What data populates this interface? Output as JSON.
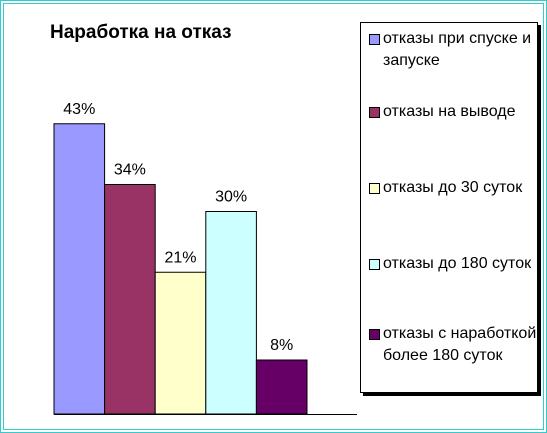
{
  "chart_data": {
    "type": "bar",
    "title": "Наработка на отказ",
    "categories": [
      "отказы при спуске и запуске",
      "отказы на выводе",
      "отказы до 30 суток",
      "отказы до 180 суток",
      "отказы с наработкой более 180 суток"
    ],
    "values": [
      43,
      34,
      21,
      30,
      8
    ],
    "value_labels": [
      "43%",
      "34%",
      "21%",
      "30%",
      "8%"
    ],
    "colors": [
      "#9999ff",
      "#993366",
      "#ffffcc",
      "#ccffff",
      "#660066"
    ],
    "ylim": [
      0,
      50
    ]
  }
}
